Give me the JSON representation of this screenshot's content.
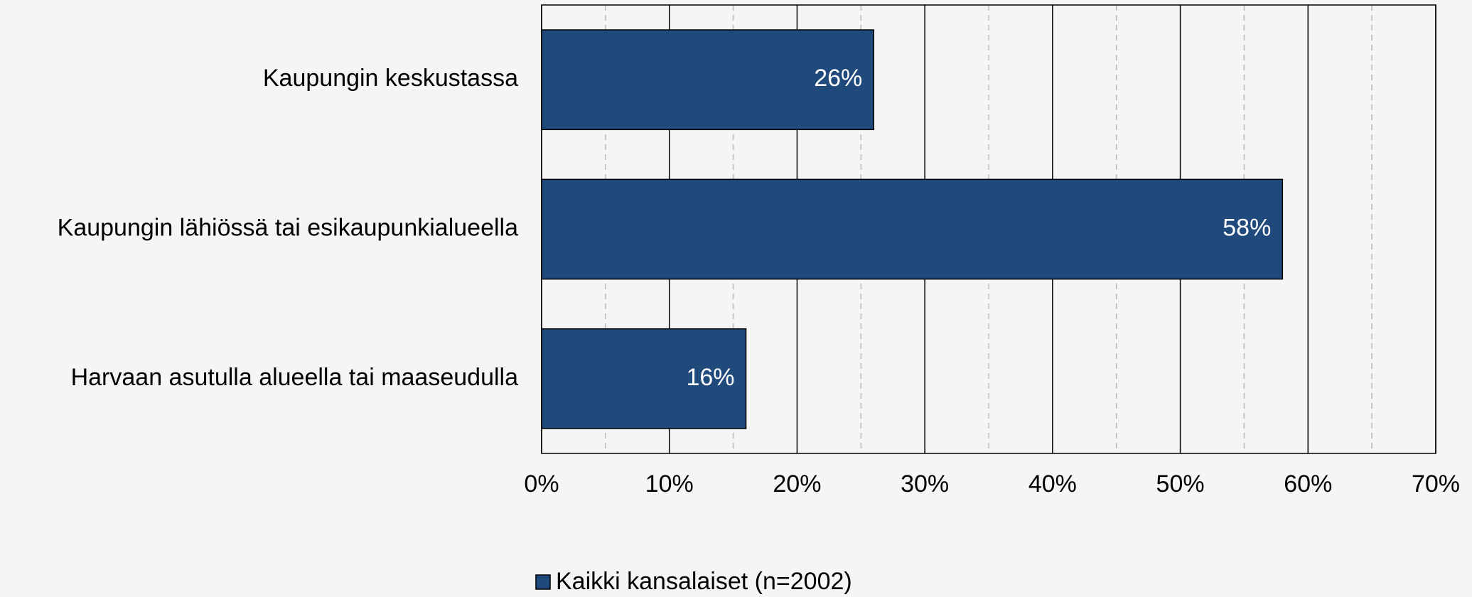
{
  "chart_data": {
    "type": "hbar",
    "categories": [
      "Kaupungin keskustassa",
      "Kaupungin lähiössä tai esikaupunkialueella",
      "Harvaan asutulla alueella tai maaseudulla"
    ],
    "series": [
      {
        "name": "Kaikki kansalaiset (n=2002)",
        "color": "#204a7c",
        "values": [
          26,
          58,
          16
        ],
        "value_labels": [
          "26%",
          "58%",
          "16%"
        ]
      }
    ],
    "xlim": [
      0,
      70
    ],
    "xticks": [
      {
        "value": 0,
        "label": "0%"
      },
      {
        "value": 10,
        "label": "10%"
      },
      {
        "value": 20,
        "label": "20%"
      },
      {
        "value": 30,
        "label": "30%"
      },
      {
        "value": 40,
        "label": "40%"
      },
      {
        "value": 50,
        "label": "50%"
      },
      {
        "value": 60,
        "label": "60%"
      },
      {
        "value": 70,
        "label": "70%"
      }
    ],
    "xminorticks": [
      5,
      15,
      25,
      35,
      45,
      55,
      65
    ],
    "grid": true,
    "legend": "bottom"
  }
}
